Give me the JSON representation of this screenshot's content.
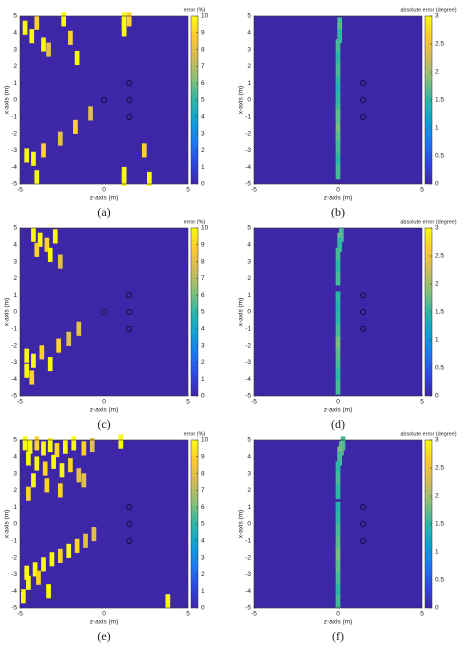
{
  "chart_data": [
    {
      "type": "heatmap",
      "panel_label": "(a)",
      "xlabel": "z-axis (m)",
      "ylabel": "x-axis (m)",
      "xlim": [
        -5,
        5
      ],
      "ylim": [
        -5,
        5
      ],
      "xticks": [
        -5,
        0,
        5
      ],
      "yticks": [
        -5,
        -4,
        -3,
        -2,
        -1,
        0,
        1,
        2,
        3,
        4,
        5
      ],
      "colorbar_label": "error (%)",
      "clim": [
        0,
        10
      ],
      "cticks": [
        0,
        1,
        2,
        3,
        4,
        5,
        6,
        7,
        8,
        9,
        10
      ],
      "points": {
        "z": [
          -4.7,
          -4.3,
          -4.0,
          -3.6,
          -3.3,
          -2.4,
          -2.0,
          -1.6,
          1.2,
          1.2,
          1.2,
          1.5,
          -4.6,
          -4.2,
          -3.6,
          -2.6,
          -1.7,
          -0.8,
          1.2,
          1.2,
          2.7,
          2.4,
          -4.0
        ],
        "x": [
          4.3,
          3.8,
          4.6,
          3.3,
          3.0,
          4.8,
          3.7,
          2.5,
          4.8,
          4.5,
          4.2,
          4.8,
          -3.3,
          -3.5,
          -3.0,
          -2.3,
          -1.6,
          -0.8,
          -4.4,
          -4.7,
          -4.7,
          -3.0,
          -4.6
        ],
        "values": [
          10,
          10,
          9,
          10,
          8,
          10,
          9,
          10,
          10,
          10,
          10,
          9,
          10,
          10,
          9,
          8,
          9,
          8,
          10,
          10,
          10,
          9,
          10
        ]
      },
      "markers": {
        "z": [
          0,
          1.5,
          1.5,
          1.5
        ],
        "x": [
          0,
          1,
          0,
          -1
        ]
      }
    },
    {
      "type": "heatmap",
      "panel_label": "(b)",
      "xlabel": "z-axis (m)",
      "ylabel": "x-axis (m)",
      "xlim": [
        -5,
        5
      ],
      "ylim": [
        -5,
        5
      ],
      "xticks": [
        -5,
        0,
        5
      ],
      "yticks": [
        -5,
        -4,
        -3,
        -2,
        -1,
        0,
        1,
        2,
        3,
        4,
        5
      ],
      "colorbar_label": "absolute error (degree)",
      "clim": [
        0,
        3
      ],
      "cticks": [
        0,
        0.5,
        1,
        1.5,
        2,
        2.5,
        3
      ],
      "points": {
        "z": [
          0.1,
          0.1,
          0.1,
          0.0,
          0.0,
          0.0,
          0.0,
          0.0,
          0.0,
          0.0,
          0.0,
          0.0,
          0.0,
          0.0,
          0.0,
          0.0
        ],
        "x": [
          4.5,
          4.2,
          3.8,
          3.2,
          2.5,
          1.8,
          1.0,
          0.6,
          0.0,
          -0.6,
          -1.0,
          -1.8,
          -2.3,
          -2.8,
          -3.6,
          -4.3
        ],
        "values": [
          1.6,
          1.7,
          1.5,
          1.6,
          1.5,
          1.6,
          1.5,
          1.4,
          1.5,
          1.6,
          1.7,
          1.8,
          1.7,
          1.6,
          1.5,
          1.6
        ]
      },
      "markers": {
        "z": [
          1.5,
          1.5,
          1.5
        ],
        "x": [
          1,
          0,
          -1
        ]
      }
    },
    {
      "type": "heatmap",
      "panel_label": "(c)",
      "xlabel": "z-axis (m)",
      "ylabel": "x-axis (m)",
      "xlim": [
        -5,
        5
      ],
      "ylim": [
        -5,
        5
      ],
      "xticks": [
        -5,
        0,
        5
      ],
      "yticks": [
        -5,
        -4,
        -3,
        -2,
        -1,
        0,
        1,
        2,
        3,
        4,
        5
      ],
      "colorbar_label": "error (%)",
      "clim": [
        0,
        10
      ],
      "cticks": [
        0,
        1,
        2,
        3,
        4,
        5,
        6,
        7,
        8,
        9,
        10
      ],
      "points": {
        "z": [
          -4.2,
          -3.8,
          -3.4,
          -2.9,
          -4.0,
          -3.2,
          -2.6,
          -4.6,
          -4.2,
          -3.7,
          -3.2,
          -2.7,
          -2.1,
          -1.5,
          -4.6,
          -4.3
        ],
        "x": [
          4.6,
          4.3,
          4.0,
          4.5,
          3.7,
          3.4,
          3.0,
          -2.6,
          -2.9,
          -2.4,
          -3.1,
          -2.0,
          -1.6,
          -1.0,
          -3.5,
          -3.9
        ],
        "values": [
          10,
          10,
          9,
          10,
          9,
          10,
          8,
          10,
          10,
          9,
          10,
          9,
          8,
          8,
          10,
          9
        ]
      },
      "markers": {
        "z": [
          0,
          1.5,
          1.5,
          1.5
        ],
        "x": [
          0,
          1,
          0,
          -1
        ]
      }
    },
    {
      "type": "heatmap",
      "panel_label": "(d)",
      "xlabel": "z-axis (m)",
      "ylabel": "x-axis (m)",
      "xlim": [
        -5,
        5
      ],
      "ylim": [
        -5,
        5
      ],
      "xticks": [
        -5,
        0,
        5
      ],
      "yticks": [
        -5,
        -4,
        -3,
        -2,
        -1,
        0,
        1,
        2,
        3,
        4,
        5
      ],
      "colorbar_label": "absolute error (degree)",
      "clim": [
        0,
        3
      ],
      "cticks": [
        0,
        0.5,
        1,
        1.5,
        2,
        2.5,
        3
      ],
      "points": {
        "z": [
          0.2,
          0.1,
          0.1,
          0.0,
          0.0,
          0.0,
          0.0,
          0.0,
          0.0,
          0.0,
          0.0,
          0.0,
          0.0,
          0.0,
          0.0
        ],
        "x": [
          4.6,
          4.3,
          4.0,
          3.4,
          2.7,
          2.0,
          0.8,
          0.2,
          -0.5,
          -1.2,
          -1.9,
          -2.6,
          -3.2,
          -3.8,
          -4.5
        ],
        "values": [
          1.6,
          1.7,
          1.5,
          1.6,
          1.5,
          1.6,
          1.5,
          1.4,
          1.5,
          1.6,
          1.8,
          1.7,
          1.6,
          1.5,
          1.6
        ]
      },
      "markers": {
        "z": [
          1.5,
          1.5,
          1.5
        ],
        "x": [
          1,
          0,
          -1
        ]
      }
    },
    {
      "type": "heatmap",
      "panel_label": "(e)",
      "xlabel": "z-axis (m)",
      "ylabel": "x-axis (m)",
      "xlim": [
        -5,
        5
      ],
      "ylim": [
        -5,
        5
      ],
      "xticks": [
        -5,
        0,
        5
      ],
      "yticks": [
        -5,
        -4,
        -3,
        -2,
        -1,
        0,
        1,
        2,
        3,
        4,
        5
      ],
      "colorbar_label": "error (%)",
      "clim": [
        0,
        10
      ],
      "cticks": [
        0,
        1,
        2,
        3,
        4,
        5,
        6,
        7,
        8,
        9,
        10
      ],
      "points": {
        "z": [
          -4.7,
          -4.4,
          -4.0,
          -3.6,
          -3.2,
          -2.8,
          -2.3,
          -1.8,
          -1.2,
          -0.7,
          -4.5,
          -4.0,
          -3.5,
          -3.0,
          -2.5,
          -2.0,
          -1.5,
          -4.2,
          -3.4,
          -2.6,
          -1.2,
          1.0,
          -4.6,
          -4.1,
          -3.6,
          -3.1,
          -2.6,
          -2.1,
          -1.6,
          -1.1,
          -0.6,
          -4.5,
          -3.9,
          -3.3,
          3.8,
          -4.8,
          -4.5
        ],
        "x": [
          4.8,
          4.6,
          4.8,
          4.5,
          4.7,
          4.4,
          4.6,
          4.8,
          4.5,
          4.7,
          3.9,
          3.6,
          3.3,
          3.7,
          3.2,
          3.5,
          2.9,
          2.6,
          2.3,
          2.0,
          2.6,
          4.9,
          -2.9,
          -2.7,
          -2.4,
          -2.1,
          -1.9,
          -1.6,
          -1.3,
          -1.0,
          -0.6,
          -3.5,
          -3.2,
          -4.0,
          -4.6,
          -4.3,
          1.8
        ],
        "values": [
          10,
          10,
          9,
          10,
          10,
          9,
          10,
          10,
          9,
          8,
          10,
          10,
          9,
          10,
          10,
          9,
          8,
          10,
          9,
          9,
          8,
          10,
          10,
          10,
          10,
          10,
          9,
          10,
          9,
          8,
          8,
          10,
          9,
          10,
          10,
          10,
          9
        ]
      },
      "markers": {
        "z": [
          1.5,
          1.5,
          1.5
        ],
        "x": [
          1,
          0,
          -1
        ]
      }
    },
    {
      "type": "heatmap",
      "panel_label": "(f)",
      "xlabel": "z-axis (m)",
      "ylabel": "x-axis (m)",
      "xlim": [
        -5,
        5
      ],
      "ylim": [
        -5,
        5
      ],
      "xticks": [
        -5,
        0,
        5
      ],
      "yticks": [
        -5,
        -4,
        -3,
        -2,
        -1,
        0,
        1,
        2,
        3,
        4,
        5
      ],
      "colorbar_label": "absolute error (degree)",
      "clim": [
        0,
        3
      ],
      "cticks": [
        0,
        0.5,
        1,
        1.5,
        2,
        2.5,
        3
      ],
      "points": {
        "z": [
          0.3,
          0.2,
          0.1,
          0.1,
          0.0,
          0.0,
          0.0,
          0.0,
          0.0,
          0.0,
          0.0,
          0.0,
          0.0,
          0.0,
          0.0,
          0.0
        ],
        "x": [
          4.8,
          4.5,
          4.2,
          3.9,
          3.3,
          2.6,
          1.9,
          0.9,
          0.3,
          -0.4,
          -1.2,
          -1.9,
          -2.6,
          -3.3,
          -4.0,
          -4.6
        ],
        "values": [
          1.6,
          1.7,
          1.8,
          1.6,
          1.5,
          1.6,
          1.5,
          1.4,
          1.5,
          1.6,
          1.7,
          1.8,
          1.7,
          1.6,
          1.5,
          1.6
        ]
      },
      "markers": {
        "z": [
          1.5,
          1.5,
          1.5
        ],
        "x": [
          1,
          0,
          -1
        ]
      }
    }
  ]
}
